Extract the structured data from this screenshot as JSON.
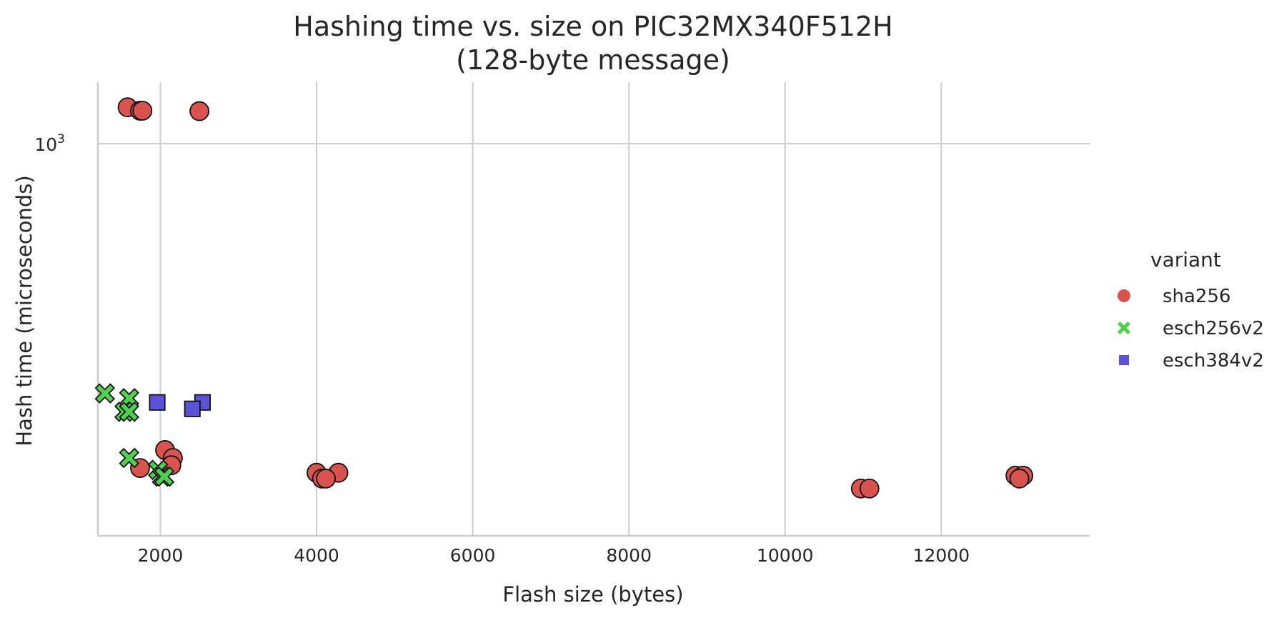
{
  "chart_data": {
    "type": "scatter",
    "title": [
      "Hashing time vs. size on PIC32MX340F512H",
      "(128-byte message)"
    ],
    "xlabel": "Flash size (bytes)",
    "ylabel": "Hash time (microseconds)",
    "x_scale": "linear",
    "y_scale": "log",
    "xlim": [
      1200,
      13900
    ],
    "ylim": [
      188,
      1300
    ],
    "x_ticks": [
      2000,
      4000,
      6000,
      8000,
      10000,
      12000
    ],
    "y_ticks": [
      {
        "value": 1000,
        "base": "10",
        "exponent": "3"
      }
    ],
    "grid": true,
    "legend": {
      "title": "variant",
      "placement": "outside-right"
    },
    "series": [
      {
        "name": "sha256",
        "marker": "circle",
        "color": "#d9534f",
        "points": [
          {
            "x": 1580,
            "y": 1168
          },
          {
            "x": 1740,
            "y": 1151
          },
          {
            "x": 1770,
            "y": 1151
          },
          {
            "x": 2500,
            "y": 1149
          },
          {
            "x": 2060,
            "y": 271
          },
          {
            "x": 2160,
            "y": 262
          },
          {
            "x": 2140,
            "y": 254
          },
          {
            "x": 1740,
            "y": 251
          },
          {
            "x": 4000,
            "y": 246
          },
          {
            "x": 4280,
            "y": 246
          },
          {
            "x": 4070,
            "y": 240
          },
          {
            "x": 4120,
            "y": 240
          },
          {
            "x": 10970,
            "y": 230
          },
          {
            "x": 11080,
            "y": 230
          },
          {
            "x": 12950,
            "y": 243
          },
          {
            "x": 13050,
            "y": 243
          },
          {
            "x": 13000,
            "y": 240
          }
        ]
      },
      {
        "name": "esch256v2",
        "marker": "x",
        "color": "#4fd14f",
        "points": [
          {
            "x": 1290,
            "y": 345
          },
          {
            "x": 1600,
            "y": 338
          },
          {
            "x": 1540,
            "y": 319
          },
          {
            "x": 1600,
            "y": 319
          },
          {
            "x": 1600,
            "y": 262
          },
          {
            "x": 1970,
            "y": 249
          },
          {
            "x": 2020,
            "y": 242
          },
          {
            "x": 2050,
            "y": 242
          }
        ]
      },
      {
        "name": "esch384v2",
        "marker": "square",
        "color": "#5a52d9",
        "points": [
          {
            "x": 1960,
            "y": 332
          },
          {
            "x": 2540,
            "y": 332
          },
          {
            "x": 2410,
            "y": 323
          }
        ]
      }
    ]
  }
}
